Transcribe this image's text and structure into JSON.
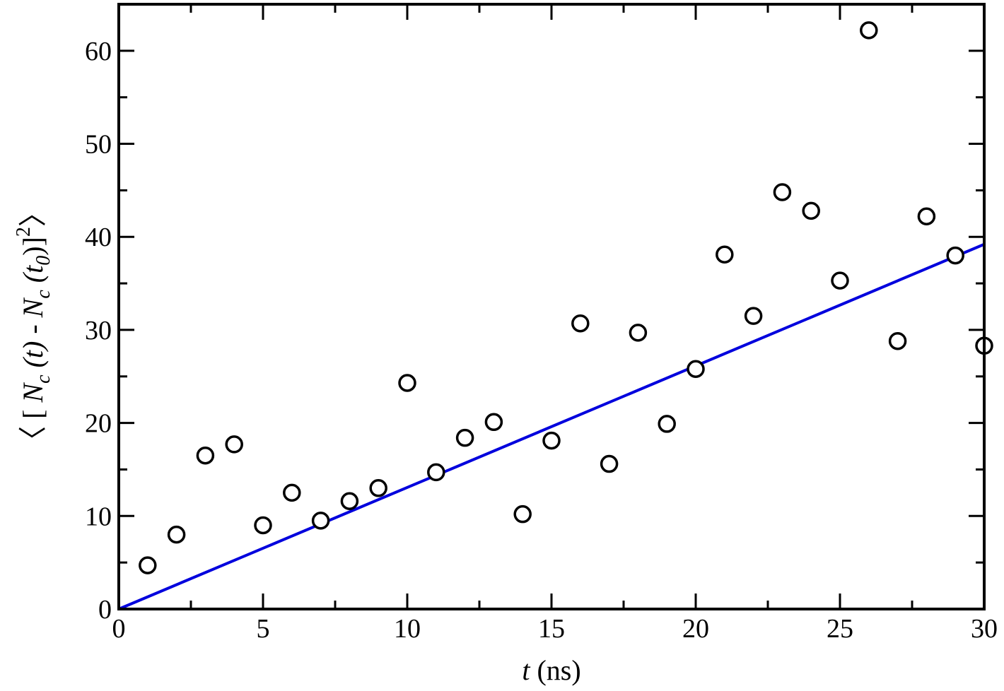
{
  "chart_data": {
    "type": "scatter",
    "xlabel": {
      "var": "t",
      "unit": " (ns)"
    },
    "ylabel": {
      "open": "〈 [",
      "N1": "N",
      "c1": "c",
      "t_part": " (t) -",
      "N2": "N",
      "c2": "c",
      "t0_open": " (t",
      "zero": "0",
      "t0_close": ")]",
      "sq": "2",
      "close": "〉"
    },
    "xlim": [
      0,
      30
    ],
    "ylim": [
      0,
      65
    ],
    "x_ticks": [
      0,
      5,
      10,
      15,
      20,
      25,
      30
    ],
    "y_ticks": [
      0,
      10,
      20,
      30,
      40,
      50,
      60
    ],
    "grid": false,
    "series": [
      {
        "kind": "points",
        "marker": "open-circle",
        "color": "#000000",
        "x": [
          1,
          2,
          3,
          4,
          5,
          6,
          7,
          8,
          9,
          10,
          11,
          12,
          13,
          14,
          15,
          16,
          17,
          18,
          19,
          20,
          21,
          22,
          23,
          24,
          25,
          26,
          27,
          28,
          29,
          30
        ],
        "y": [
          4.7,
          8.0,
          16.5,
          17.7,
          9.0,
          12.5,
          9.5,
          11.6,
          13.0,
          24.3,
          14.7,
          18.4,
          20.1,
          10.2,
          18.1,
          30.7,
          15.6,
          29.7,
          19.9,
          25.8,
          38.1,
          31.5,
          44.8,
          42.8,
          35.3,
          62.2,
          28.8,
          42.2,
          38.0,
          28.3
        ]
      },
      {
        "kind": "fit-line",
        "color": "#0000dd",
        "x": [
          0,
          30
        ],
        "y": [
          0,
          39.2
        ]
      }
    ]
  }
}
